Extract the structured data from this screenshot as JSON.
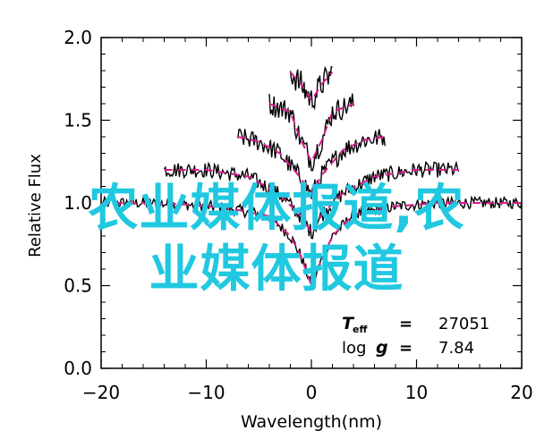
{
  "chart_data": {
    "type": "line",
    "xlabel": "Wavelength(nm)",
    "ylabel": "Relative Flux",
    "xlim": [
      -20,
      20
    ],
    "ylim": [
      0.0,
      2.0
    ],
    "xticks": [
      -20,
      -10,
      0,
      10,
      20
    ],
    "xtick_labels": [
      "−20",
      "−10",
      "0",
      "10",
      "20"
    ],
    "yticks": [
      0.0,
      0.5,
      1.0,
      1.5,
      2.0
    ],
    "ytick_labels": [
      "0.0",
      "0.5",
      "1.0",
      "1.5",
      "2.0"
    ],
    "grid": false,
    "colors": {
      "observed": "#000000",
      "model": "#d81b8c",
      "axes": "#000000"
    },
    "series": [
      {
        "x": [
          -20,
          -16,
          -12,
          -8,
          -4,
          -2,
          -1,
          0,
          1,
          2,
          4,
          8,
          12,
          16,
          20
        ],
        "y": [
          1.0,
          1.0,
          0.99,
          0.97,
          0.92,
          0.8,
          0.68,
          0.5,
          0.66,
          0.8,
          0.93,
          0.98,
          1.0,
          1.0,
          1.0
        ]
      },
      {
        "x": [
          -14,
          -10,
          -6,
          -3,
          -1,
          0,
          1,
          3,
          6,
          10,
          14
        ],
        "y": [
          1.2,
          1.2,
          1.16,
          1.05,
          0.92,
          0.82,
          0.93,
          1.06,
          1.16,
          1.2,
          1.2
        ]
      },
      {
        "x": [
          -7,
          -5,
          -3,
          -1,
          0,
          1,
          3,
          5,
          7
        ],
        "y": [
          1.4,
          1.37,
          1.3,
          1.15,
          1.05,
          1.17,
          1.32,
          1.38,
          1.4
        ]
      },
      {
        "x": [
          -4,
          -2,
          -1,
          0,
          1,
          2,
          4
        ],
        "y": [
          1.6,
          1.55,
          1.38,
          1.25,
          1.38,
          1.55,
          1.6
        ]
      },
      {
        "x": [
          -2,
          -1,
          0,
          1,
          2
        ],
        "y": [
          1.79,
          1.72,
          1.62,
          1.72,
          1.79
        ]
      }
    ],
    "annotations": {
      "teff_label": "T",
      "teff_sub": "eff",
      "teff_eq": "=",
      "teff_value": "27051",
      "logg_label": "log",
      "logg_g": "g",
      "logg_eq": "=",
      "logg_value": "7.84"
    }
  },
  "watermark": {
    "line1": "农业媒体报道,农",
    "line2": "业媒体报道"
  }
}
